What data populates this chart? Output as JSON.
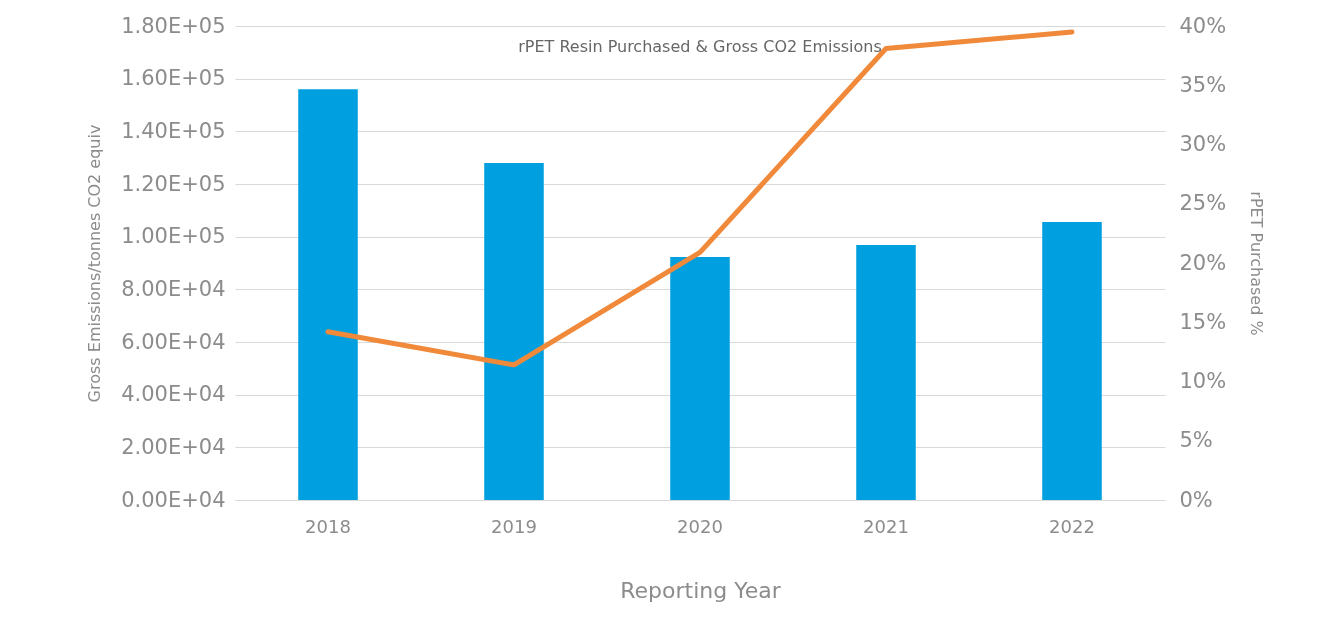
{
  "chart_data": {
    "type": "bar",
    "title": "rPET Resin Purchased & Gross CO2 Emissions",
    "xlabel": "Reporting Year",
    "ylabel": "Gross Emissions/tonnes CO2 equiv",
    "y2label": "rPET Purchased %",
    "categories": [
      "2018",
      "2019",
      "2020",
      "2021",
      "2022"
    ],
    "series": [
      {
        "color": "#009fe0",
        "values": [
          156000,
          128000,
          92300,
          96800,
          105600
        ]
      },
      {
        "type": "line",
        "axis": "y2",
        "color": "#f08a3a",
        "values": [
          14.2,
          11.4,
          20.9,
          38.1,
          39.5
        ]
      }
    ],
    "ylim": [
      0,
      180000
    ],
    "yticks": [
      {
        "value": 0,
        "label": "0.00E+04"
      },
      {
        "value": 20000,
        "label": "2.00E+04"
      },
      {
        "value": 40000,
        "label": "4.00E+04"
      },
      {
        "value": 60000,
        "label": "6.00E+04"
      },
      {
        "value": 80000,
        "label": "8.00E+04"
      },
      {
        "value": 100000,
        "label": "1.00E+05"
      },
      {
        "value": 120000,
        "label": "1.20E+05"
      },
      {
        "value": 140000,
        "label": "1.40E+05"
      },
      {
        "value": 160000,
        "label": "1.60E+05"
      },
      {
        "value": 180000,
        "label": "1.80E+05"
      }
    ],
    "y2lim": [
      0,
      40
    ],
    "y2ticks": [
      {
        "value": 0,
        "label": "0%"
      },
      {
        "value": 5,
        "label": "5%"
      },
      {
        "value": 10,
        "label": "10%"
      },
      {
        "value": 15,
        "label": "15%"
      },
      {
        "value": 20,
        "label": "20%"
      },
      {
        "value": 25,
        "label": "25%"
      },
      {
        "value": 30,
        "label": "30%"
      },
      {
        "value": 35,
        "label": "35%"
      },
      {
        "value": 40,
        "label": "40%"
      }
    ],
    "grid": "y"
  }
}
